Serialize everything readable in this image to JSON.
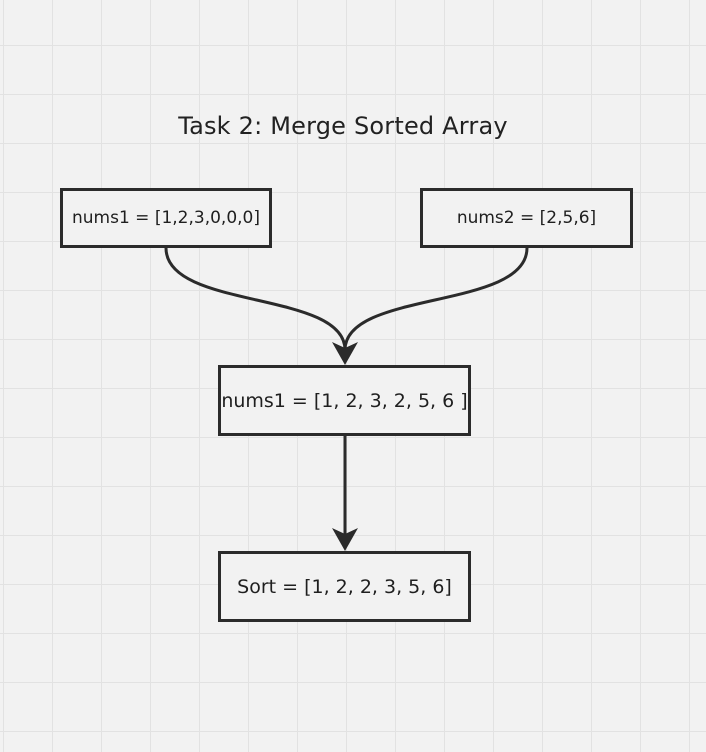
{
  "diagram": {
    "title": "Task 2: Merge Sorted Array",
    "nodes": [
      {
        "id": "nums1-input",
        "label": "nums1 = [1,2,3,0,0,0]"
      },
      {
        "id": "nums2-input",
        "label": "nums2 = [2,5,6]"
      },
      {
        "id": "merged",
        "label": "nums1 = [1, 2, 3, 2, 5, 6 ]"
      },
      {
        "id": "sorted",
        "label": "Sort = [1, 2, 2, 3, 5, 6]"
      }
    ],
    "edges": [
      {
        "from": "nums1-input",
        "to": "merged"
      },
      {
        "from": "nums2-input",
        "to": "merged"
      },
      {
        "from": "merged",
        "to": "sorted"
      }
    ],
    "colors": {
      "background": "#f2f2f2",
      "grid": "#e2e2e2",
      "stroke": "#2b2b2b"
    }
  }
}
